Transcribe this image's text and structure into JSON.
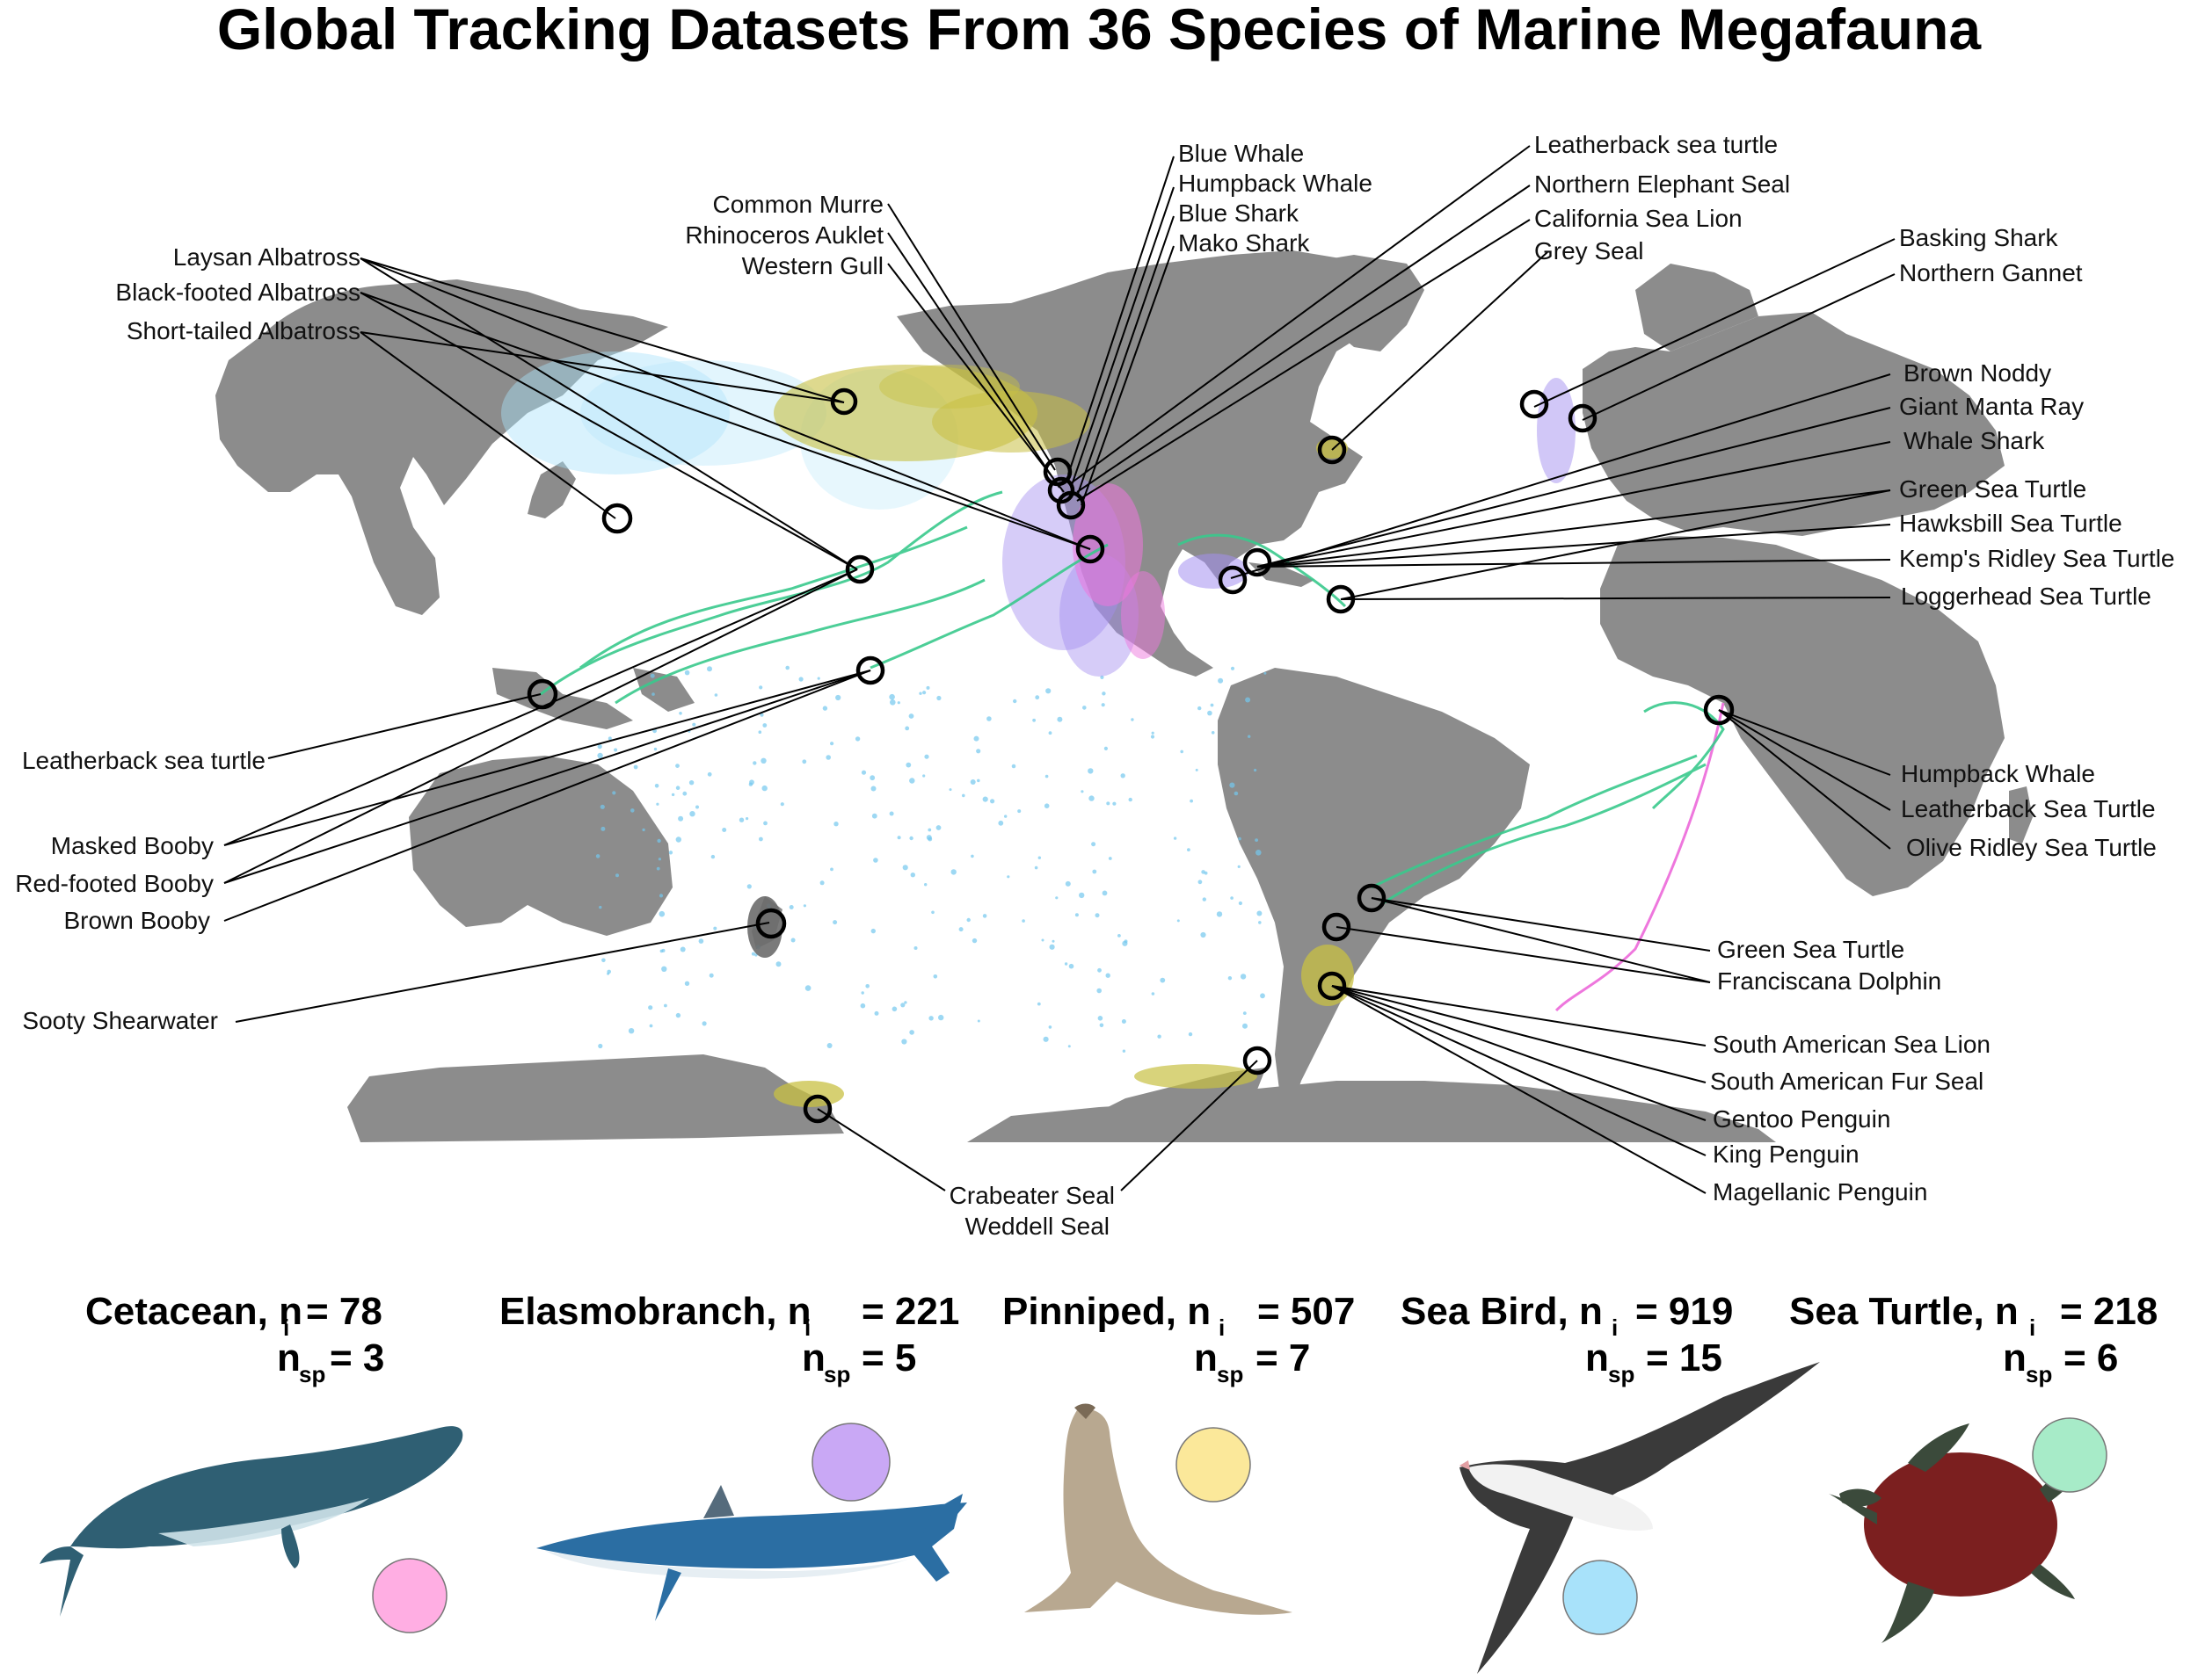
{
  "title": "Global Tracking Datasets From 36 Species of Marine Megafauna",
  "colors": {
    "land": "#8c8c8c",
    "cetacean": "#ffaee3",
    "elasmobranch": "#c9a8f5",
    "pinniped": "#fbe89a",
    "seabird": "#a8e2fa",
    "seaturtle": "#a7ebc8",
    "track_pinniped": "#c8c043",
    "track_seabird": "#74c8ee",
    "track_turtle": "#39c98c",
    "track_elasmo": "#a48ff0",
    "track_cetacean": "#ee77dd"
  },
  "labels": {
    "albatross_laysan": "Laysan Albatross",
    "albatross_blackfooted": "Black-footed Albatross",
    "albatross_shorttailed": "Short-tailed Albatross",
    "murre": "Common Murre",
    "auklet": "Rhinoceros Auklet",
    "gull": "Western Gull",
    "blue_whale": "Blue Whale",
    "humpback_n": "Humpback Whale",
    "blue_shark": "Blue Shark",
    "mako": "Mako Shark",
    "leatherback_n": "Leatherback sea turtle",
    "elephant_seal": "Northern Elephant Seal",
    "ca_sea_lion": "California Sea Lion",
    "grey_seal": "Grey Seal",
    "basking_shark": "Basking Shark",
    "gannet": "Northern Gannet",
    "noddy": "Brown Noddy",
    "manta": "Giant Manta Ray",
    "whale_shark": "Whale Shark",
    "green_turtle_n": "Green Sea Turtle",
    "hawksbill": "Hawksbill Sea Turtle",
    "kemps": "Kemp's Ridley Sea Turtle",
    "loggerhead": "Loggerhead Sea Turtle",
    "humpback_s": "Humpback Whale",
    "leatherback_s": "Leatherback Sea Turtle",
    "olive_ridley": "Olive Ridley Sea Turtle",
    "green_turtle_s": "Green Sea Turtle",
    "franciscana": "Franciscana Dolphin",
    "sa_sea_lion": "South American Sea Lion",
    "sa_fur_seal": "South American Fur Seal",
    "gentoo": "Gentoo Penguin",
    "king": "King Penguin",
    "magellanic": "Magellanic Penguin",
    "crabeater": "Crabeater Seal",
    "weddell": "Weddell Seal",
    "leatherback_w": "Leatherback sea turtle",
    "masked_booby": "Masked Booby",
    "redfooted_booby": "Red-footed Booby",
    "brown_booby": "Brown Booby",
    "sooty": "Sooty Shearwater"
  },
  "groups": [
    {
      "name": "Cetacean, n",
      "n_i": "= 78",
      "n_sp": "= 3",
      "color": "#ffaee3",
      "icon": "whale-illustration"
    },
    {
      "name": "Elasmobranch, n",
      "n_i": "= 221",
      "n_sp": "= 5",
      "color": "#c9a8f5",
      "icon": "shark-illustration"
    },
    {
      "name": "Pinniped, n",
      "n_i": "= 507",
      "n_sp": "= 7",
      "color": "#fbe89a",
      "icon": "sea-lion-illustration"
    },
    {
      "name": "Sea Bird, n",
      "n_i": "= 919",
      "n_sp": "= 15",
      "color": "#a8e2fa",
      "icon": "albatross-illustration"
    },
    {
      "name": "Sea Turtle, n",
      "n_i": "= 218",
      "n_sp": "= 6",
      "color": "#a7ebc8",
      "icon": "sea-turtle-illustration"
    }
  ],
  "subscripts": {
    "i": "i",
    "sp": "sp"
  },
  "sub_n": "n"
}
